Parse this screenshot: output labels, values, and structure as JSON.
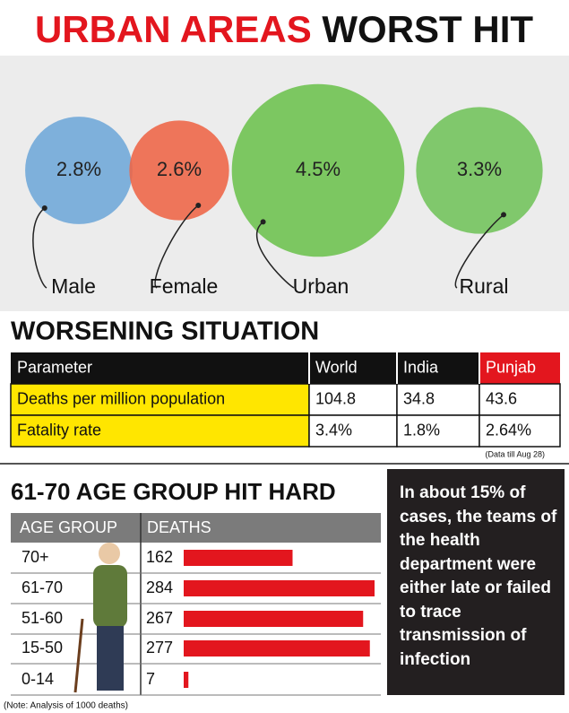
{
  "title": [
    "URBAN AREAS",
    "WORST HIT"
  ],
  "chart_data": [
    {
      "type": "bubble",
      "categories": [
        "Male",
        "Female",
        "Urban",
        "Rural"
      ],
      "values": [
        2.8,
        2.6,
        4.5,
        3.3
      ],
      "value_labels": [
        "2.8%",
        "2.6%",
        "4.5%",
        "3.3%"
      ],
      "colors": [
        "#6ea7d8",
        "#ee6446",
        "#6cc24d",
        "#71c35a"
      ]
    },
    {
      "type": "bar",
      "title": "61-70 AGE GROUP HIT HARD",
      "category_header": "AGE GROUP",
      "value_header": "DEATHS",
      "categories": [
        "70+",
        "61-70",
        "51-60",
        "15-50",
        "0-14"
      ],
      "values": [
        162,
        284,
        267,
        277,
        7
      ],
      "color": "#e3161e",
      "note": "(Note: Analysis of 1000 deaths)"
    }
  ],
  "table": {
    "title": "WORSENING SITUATION",
    "header": [
      "Parameter",
      "World",
      "India",
      "Punjab"
    ],
    "rows": [
      [
        "Deaths per million population",
        "104.8",
        "34.8",
        "43.6"
      ],
      [
        "Fatality rate",
        "3.4%",
        "1.8%",
        "2.64%"
      ]
    ],
    "note": "(Data till Aug 28)"
  },
  "callout": {
    "text": "In about 15% of cases, the teams of the health department were either late or failed to trace transmission of infection"
  }
}
